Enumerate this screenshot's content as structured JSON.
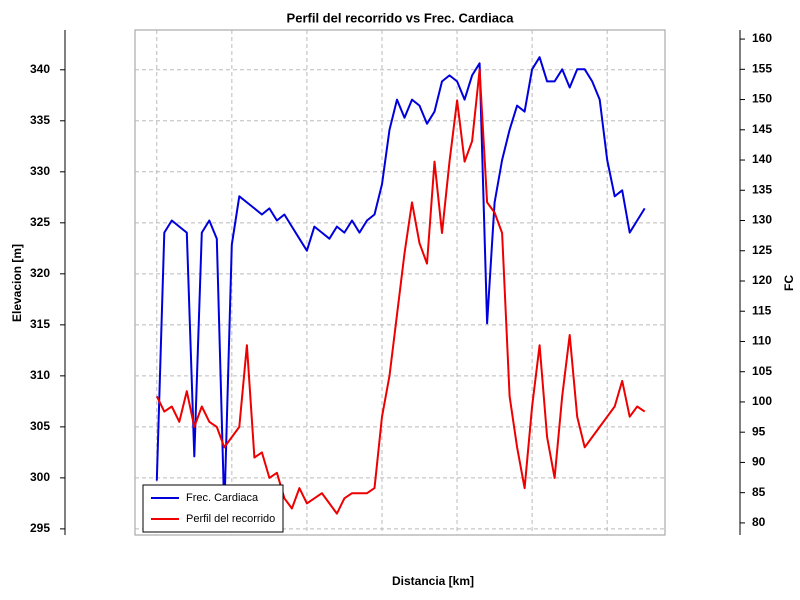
{
  "chart_data": {
    "type": "line",
    "title": "Perfil del recorrido vs Frec. Cardiaca",
    "xlabel": "Distancia [km]",
    "ylabel": "Elevacion [m]",
    "y2label": "FC",
    "x": [
      0,
      0.1,
      0.2,
      0.3,
      0.4,
      0.5,
      0.6,
      0.7,
      0.8,
      0.9,
      1.0,
      1.1,
      1.2,
      1.3,
      1.4,
      1.5,
      1.6,
      1.7,
      1.8,
      1.9,
      2.0,
      2.1,
      2.2,
      2.3,
      2.4,
      2.5,
      2.6,
      2.7,
      2.8,
      2.9,
      3.0,
      3.1,
      3.2,
      3.3,
      3.4,
      3.5,
      3.6,
      3.7,
      3.8,
      3.9,
      4.0,
      4.1,
      4.2,
      4.3,
      4.4,
      4.5,
      4.6,
      4.7,
      4.8,
      4.9,
      5.0,
      5.1,
      5.2,
      5.3,
      5.4,
      5.5,
      5.6,
      5.7,
      5.8,
      5.9,
      6.0,
      6.1,
      6.2,
      6.3,
      6.4,
      6.5
    ],
    "xlim": [
      -0.29,
      6.77
    ],
    "xticks": [
      0,
      1,
      2,
      3,
      4,
      5,
      6
    ],
    "series": [
      {
        "name": "Frec. Cardiaca",
        "color": "#0000dd",
        "axis": "y2",
        "values": [
          87,
          128,
          130,
          129,
          128,
          91,
          128,
          130,
          127,
          82,
          126,
          134,
          133,
          132,
          131,
          132,
          130,
          131,
          129,
          127,
          125,
          129,
          128,
          127,
          129,
          128,
          130,
          128,
          130,
          131,
          136,
          145,
          150,
          147,
          150,
          149,
          146,
          148,
          153,
          154,
          153,
          150,
          154,
          156,
          113,
          133,
          140,
          145,
          149,
          148,
          155,
          157,
          153,
          153,
          155,
          152,
          155,
          155,
          153,
          150,
          140,
          134,
          135,
          128,
          130,
          132
        ]
      },
      {
        "name": "Perfil del recorrido",
        "color": "#ee0000",
        "values": [
          308,
          306.5,
          307,
          305.5,
          308.5,
          305,
          307,
          305.5,
          305,
          303,
          304,
          305,
          313,
          302,
          302.5,
          300,
          300.5,
          298,
          297,
          299,
          297.5,
          298,
          298.5,
          297.5,
          296.5,
          298,
          298.5,
          298.5,
          298.5,
          299,
          306,
          310,
          316,
          322,
          327,
          323,
          321,
          331,
          324,
          331,
          337,
          331,
          333,
          340,
          327,
          326,
          324,
          308,
          303,
          299,
          307,
          313,
          304,
          300,
          308,
          314,
          306,
          303,
          304,
          305,
          306,
          307,
          309.5,
          306,
          307,
          306.5
        ]
      }
    ],
    "ylim": [
      294.4,
      343.9
    ],
    "yticks": [
      295,
      300,
      305,
      310,
      315,
      320,
      325,
      330,
      335,
      340
    ],
    "y2lim": [
      78,
      161.5
    ],
    "y2ticks": [
      80,
      85,
      90,
      95,
      100,
      105,
      110,
      115,
      120,
      125,
      130,
      135,
      140,
      145,
      150,
      155,
      160
    ],
    "grid": true,
    "legend": "lower-left"
  }
}
